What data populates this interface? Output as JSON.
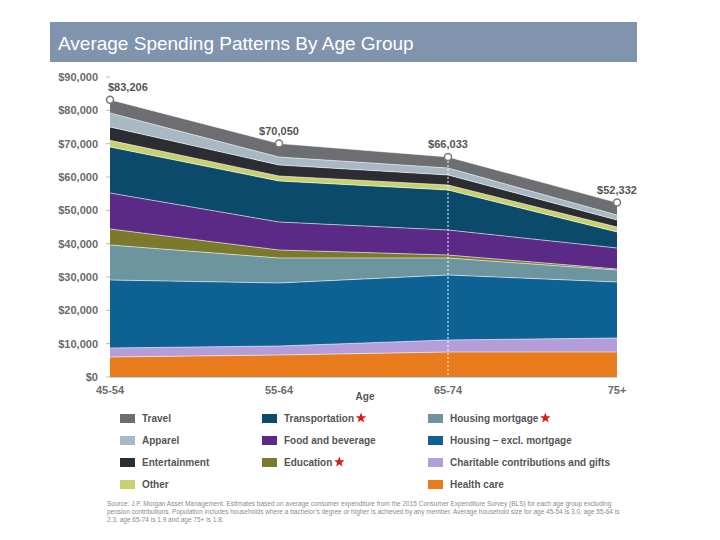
{
  "chart_data": {
    "type": "area",
    "title": "Average Spending Patterns By Age Group",
    "x_label": "Age",
    "categories": [
      "45-54",
      "55-64",
      "65-74",
      "75+"
    ],
    "stacked": true,
    "grid": false,
    "ylim": [
      0,
      90000
    ],
    "yticks": [
      {
        "value": 0,
        "label": "$0"
      },
      {
        "value": 10000,
        "label": "$10,000"
      },
      {
        "value": 20000,
        "label": "$20,000"
      },
      {
        "value": 30000,
        "label": "$30,000"
      },
      {
        "value": 40000,
        "label": "$40,000"
      },
      {
        "value": 50000,
        "label": "$50,000"
      },
      {
        "value": 60000,
        "label": "$60,000"
      },
      {
        "value": 70000,
        "label": "$70,000"
      },
      {
        "value": 80000,
        "label": "$80,000"
      },
      {
        "value": 90000,
        "label": "$90,000"
      }
    ],
    "series": [
      {
        "name": "Travel",
        "color": "#6d6e71",
        "values": [
          4006,
          4050,
          3333,
          3732
        ]
      },
      {
        "name": "Apparel",
        "color": "#a9b9c4",
        "values": [
          4200,
          2400,
          2100,
          1500
        ]
      },
      {
        "name": "Entertainment",
        "color": "#2b2d33",
        "values": [
          4000,
          3300,
          3000,
          2100
        ]
      },
      {
        "name": "Other",
        "color": "#c9d16f",
        "values": [
          2000,
          1500,
          1500,
          1500
        ]
      },
      {
        "name": "Transportation",
        "color": "#0b4a6b",
        "values": [
          13800,
          12300,
          12000,
          4800
        ]
      },
      {
        "name": "Food and beverage",
        "color": "#5b2a86",
        "values": [
          10800,
          8400,
          7500,
          6300
        ]
      },
      {
        "name": "Education",
        "color": "#7b7a2c",
        "values": [
          4800,
          2400,
          900,
          300
        ]
      },
      {
        "name": "Housing mortgage",
        "color": "#6d95a0",
        "values": [
          10500,
          7500,
          5100,
          3600
        ]
      },
      {
        "name": "Housing – excl. mortgage",
        "color": "#0d6293",
        "values": [
          20400,
          18900,
          19500,
          16800
        ]
      },
      {
        "name": "Charitable contributions and gifts",
        "color": "#b59dd9",
        "values": [
          2700,
          2700,
          3600,
          4200
        ]
      },
      {
        "name": "Health care",
        "color": "#e87b1c",
        "values": [
          6000,
          6600,
          7500,
          7500
        ]
      }
    ],
    "annotations": [
      {
        "label": "$83,206",
        "value": 83206
      },
      {
        "label": "$70,050",
        "value": 70050
      },
      {
        "label": "$66,033",
        "value": 66033
      },
      {
        "label": "$52,332",
        "value": 52332
      }
    ],
    "source": "Source: J.P. Morgan Asset Management. Estimates based on average consumer expenditure from the 2015 Consumer Expenditure Survey (BLS) for each age group excluding pension contributions. Population includes households where a bachelor's degree or higher is achieved by any member. Average household size for age 45-54 is 3.0, age 55-64 is 2.3, age 65-74 is 1.9 and age 75+ is 1.8."
  }
}
